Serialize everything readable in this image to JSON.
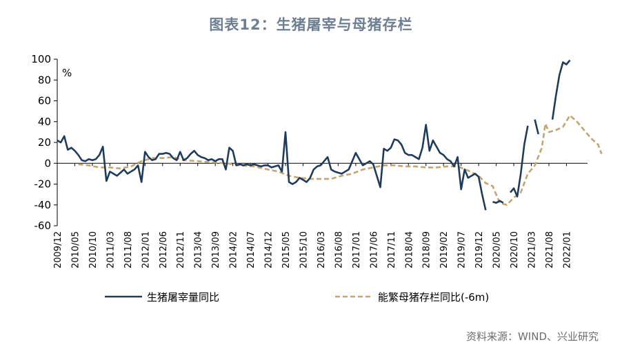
{
  "page": {
    "title": "图表12：生猪屠宰与母猪存栏",
    "source": "资料来源：WIND、兴业研究"
  },
  "chart_data": {
    "type": "line",
    "unit": "%",
    "ylim": [
      -60,
      100
    ],
    "yticks": [
      100,
      80,
      60,
      40,
      20,
      0,
      -20,
      -40,
      -60
    ],
    "grid": false,
    "legend_position": "bottom",
    "xticks": [
      "2009/12",
      "2010/05",
      "2010/10",
      "2011/03",
      "2011/08",
      "2012/01",
      "2012/06",
      "2012/11",
      "2013/04",
      "2013/09",
      "2014/02",
      "2014/07",
      "2014/12",
      "2015/05",
      "2015/10",
      "2016/03",
      "2016/08",
      "2017/01",
      "2017/06",
      "2017/11",
      "2018/04",
      "2018/09",
      "2019/02",
      "2019/07",
      "2019/12",
      "2020/05",
      "2020/10",
      "2021/03",
      "2021/08",
      "2022/01"
    ],
    "series": [
      {
        "name": "生猪屠宰量同比",
        "color": "#1f3b5c",
        "style": "solid",
        "points": [
          [
            0,
            22
          ],
          [
            1,
            20
          ],
          [
            2,
            26
          ],
          [
            3,
            13
          ],
          [
            4,
            15
          ],
          [
            5,
            12
          ],
          [
            6,
            8
          ],
          [
            7,
            3
          ],
          [
            8,
            2
          ],
          [
            9,
            4
          ],
          [
            10,
            3
          ],
          [
            11,
            4
          ],
          [
            12,
            8
          ],
          [
            13,
            16
          ],
          [
            14,
            -17
          ],
          [
            15,
            -8
          ],
          [
            16,
            -10
          ],
          [
            17,
            -12
          ],
          [
            18,
            -9
          ],
          [
            19,
            -6
          ],
          [
            20,
            -10
          ],
          [
            21,
            -8
          ],
          [
            22,
            -6
          ],
          [
            23,
            -2
          ],
          [
            24,
            -18
          ],
          [
            25,
            11
          ],
          [
            26,
            6
          ],
          [
            27,
            3
          ],
          [
            28,
            4
          ],
          [
            29,
            9
          ],
          [
            30,
            9
          ],
          [
            31,
            10
          ],
          [
            32,
            9
          ],
          [
            33,
            5
          ],
          [
            34,
            3
          ],
          [
            35,
            11
          ],
          [
            36,
            3
          ],
          [
            37,
            5
          ],
          [
            38,
            9
          ],
          [
            39,
            12
          ],
          [
            40,
            8
          ],
          [
            41,
            6
          ],
          [
            42,
            5
          ],
          [
            43,
            3
          ],
          [
            44,
            4
          ],
          [
            45,
            2
          ],
          [
            46,
            4
          ],
          [
            47,
            4
          ],
          [
            48,
            -6
          ],
          [
            49,
            15
          ],
          [
            50,
            12
          ],
          [
            51,
            -2
          ],
          [
            52,
            -1
          ],
          [
            53,
            -2
          ],
          [
            54,
            -1
          ],
          [
            55,
            -2
          ],
          [
            56,
            -1
          ],
          [
            57,
            -2
          ],
          [
            58,
            -3
          ],
          [
            59,
            -2
          ],
          [
            60,
            -2
          ],
          [
            61,
            -4
          ],
          [
            62,
            -3
          ],
          [
            63,
            -2
          ],
          [
            64,
            -8
          ],
          [
            65,
            30
          ],
          [
            66,
            -18
          ],
          [
            67,
            -20
          ],
          [
            68,
            -18
          ],
          [
            69,
            -14
          ],
          [
            70,
            -16
          ],
          [
            71,
            -18
          ],
          [
            72,
            -14
          ],
          [
            73,
            -6
          ],
          [
            74,
            -3
          ],
          [
            75,
            -2
          ],
          [
            76,
            2
          ],
          [
            77,
            6
          ],
          [
            78,
            -6
          ],
          [
            79,
            -8
          ],
          [
            80,
            -9
          ],
          [
            81,
            -10
          ],
          [
            82,
            -8
          ],
          [
            83,
            -6
          ],
          [
            84,
            2
          ],
          [
            85,
            10
          ],
          [
            86,
            4
          ],
          [
            87,
            -2
          ],
          [
            88,
            0
          ],
          [
            89,
            2
          ],
          [
            90,
            -1
          ],
          [
            91,
            -12
          ],
          [
            92,
            -23
          ],
          [
            93,
            14
          ],
          [
            94,
            12
          ],
          [
            95,
            15
          ],
          [
            96,
            23
          ],
          [
            97,
            22
          ],
          [
            98,
            18
          ],
          [
            99,
            10
          ],
          [
            100,
            8
          ],
          [
            101,
            8
          ],
          [
            102,
            6
          ],
          [
            103,
            4
          ],
          [
            104,
            15
          ],
          [
            105,
            37
          ],
          [
            106,
            12
          ],
          [
            107,
            22
          ],
          [
            108,
            16
          ],
          [
            109,
            10
          ],
          [
            110,
            8
          ],
          [
            111,
            4
          ],
          [
            112,
            2
          ],
          [
            113,
            -3
          ],
          [
            114,
            6
          ],
          [
            115,
            -25
          ],
          [
            116,
            -6
          ],
          [
            117,
            -14
          ],
          [
            118,
            -12
          ],
          [
            119,
            -10
          ],
          [
            120,
            -13
          ],
          [
            121,
            -30
          ],
          [
            122,
            -45
          ],
          [
            null,
            null
          ],
          [
            124,
            -37
          ],
          [
            125,
            -38
          ],
          [
            126,
            -36
          ],
          [
            127,
            -38
          ],
          [
            null,
            null
          ],
          [
            129,
            -28
          ],
          [
            130,
            -24
          ],
          [
            131,
            -32
          ],
          [
            132,
            -10
          ],
          [
            133,
            18
          ],
          [
            134,
            36
          ],
          [
            null,
            null
          ],
          [
            136,
            42
          ],
          [
            137,
            28
          ],
          [
            null,
            null
          ],
          [
            141,
            42
          ],
          [
            142,
            65
          ],
          [
            143,
            85
          ],
          [
            144,
            97
          ],
          [
            145,
            95
          ],
          [
            146,
            99
          ]
        ]
      },
      {
        "name": "能繁母猪存栏同比(-6m)",
        "color": "#c2a56f",
        "style": "dashed",
        "points": [
          [
            6,
            -1
          ],
          [
            9,
            -2
          ],
          [
            12,
            -4
          ],
          [
            15,
            -4
          ],
          [
            18,
            -5
          ],
          [
            21,
            -3
          ],
          [
            24,
            2
          ],
          [
            27,
            5
          ],
          [
            30,
            5
          ],
          [
            33,
            6
          ],
          [
            36,
            3
          ],
          [
            40,
            2
          ],
          [
            44,
            1
          ],
          [
            48,
            0
          ],
          [
            52,
            -2
          ],
          [
            56,
            -3
          ],
          [
            60,
            -6
          ],
          [
            63,
            -8
          ],
          [
            66,
            -12
          ],
          [
            69,
            -14
          ],
          [
            72,
            -15
          ],
          [
            75,
            -15
          ],
          [
            78,
            -15
          ],
          [
            81,
            -12
          ],
          [
            84,
            -10
          ],
          [
            87,
            -6
          ],
          [
            90,
            -4
          ],
          [
            93,
            -2
          ],
          [
            96,
            -2
          ],
          [
            99,
            -3
          ],
          [
            102,
            -3
          ],
          [
            105,
            -4
          ],
          [
            108,
            -4
          ],
          [
            111,
            -3
          ],
          [
            114,
            -3
          ],
          [
            117,
            -7
          ],
          [
            120,
            -12
          ],
          [
            122,
            -19
          ],
          [
            124,
            -22
          ],
          [
            126,
            -38
          ],
          [
            128,
            -40
          ],
          [
            130,
            -33
          ],
          [
            132,
            -28
          ],
          [
            134,
            -10
          ],
          [
            136,
            -2
          ],
          [
            138,
            15
          ],
          [
            139,
            38
          ],
          [
            140,
            30
          ],
          [
            142,
            32
          ],
          [
            144,
            35
          ],
          [
            146,
            46
          ],
          [
            148,
            40
          ],
          [
            150,
            32
          ],
          [
            152,
            24
          ],
          [
            154,
            18
          ],
          [
            155,
            9
          ]
        ]
      }
    ]
  }
}
